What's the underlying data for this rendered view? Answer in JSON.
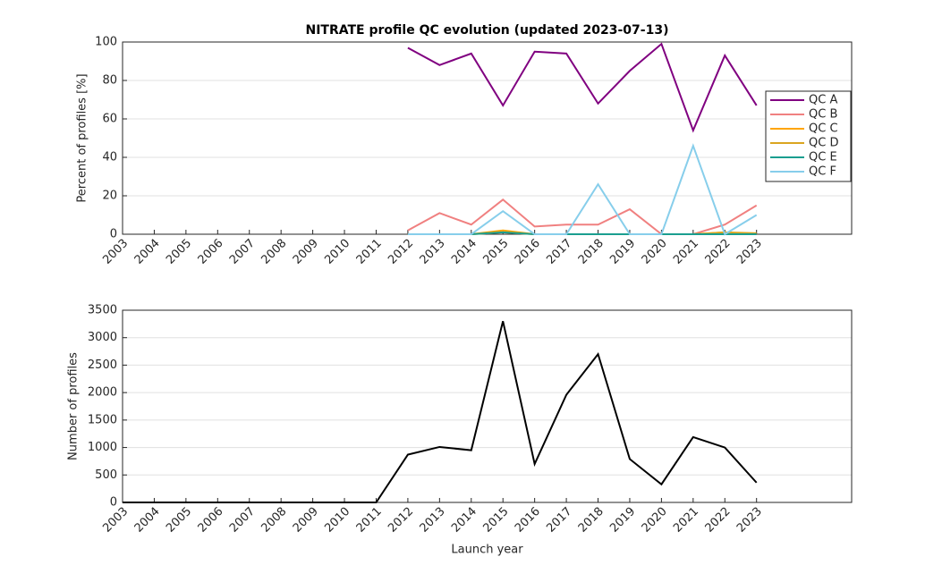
{
  "chart_data": [
    {
      "type": "line",
      "title": "NITRATE profile QC evolution (updated 2023-07-13)",
      "y_label": "Percent of profiles [%]",
      "x": [
        2003,
        2004,
        2005,
        2006,
        2007,
        2008,
        2009,
        2010,
        2011,
        2012,
        2013,
        2014,
        2015,
        2016,
        2017,
        2018,
        2019,
        2020,
        2021,
        2022,
        2023
      ],
      "xlim": [
        2003,
        2026
      ],
      "xticks": [
        2003,
        2004,
        2005,
        2006,
        2007,
        2008,
        2009,
        2010,
        2011,
        2012,
        2013,
        2014,
        2015,
        2016,
        2017,
        2018,
        2019,
        2020,
        2021,
        2022,
        2023
      ],
      "ylim": [
        0,
        100
      ],
      "yticks": [
        0,
        20,
        40,
        60,
        80,
        100
      ],
      "grid": true,
      "legend": "east",
      "series": [
        {
          "name": "QC A",
          "color": "#800080",
          "values": [
            null,
            null,
            null,
            null,
            null,
            null,
            null,
            null,
            null,
            97,
            88,
            94,
            67,
            95,
            94,
            68,
            85,
            99,
            54,
            93,
            67
          ]
        },
        {
          "name": "QC B",
          "color": "#f08080",
          "values": [
            null,
            null,
            null,
            null,
            null,
            null,
            null,
            null,
            null,
            2,
            11,
            5,
            18,
            4,
            5,
            5,
            13,
            0,
            0,
            5,
            15
          ]
        },
        {
          "name": "QC C",
          "color": "#ffa500",
          "values": [
            null,
            null,
            null,
            null,
            null,
            null,
            null,
            null,
            null,
            0,
            0,
            0,
            2,
            0,
            0,
            0,
            0,
            0,
            0,
            1,
            0
          ]
        },
        {
          "name": "QC D",
          "color": "#daa520",
          "values": [
            null,
            null,
            null,
            null,
            null,
            null,
            null,
            null,
            null,
            0,
            0,
            0,
            1,
            0,
            0,
            0,
            0,
            0,
            0,
            1,
            0.5
          ]
        },
        {
          "name": "QC E",
          "color": "#1a9e8f",
          "values": [
            null,
            null,
            null,
            null,
            null,
            null,
            null,
            null,
            null,
            0,
            0,
            0,
            1,
            0,
            0,
            0,
            0,
            0,
            0,
            0,
            0
          ]
        },
        {
          "name": "QC F",
          "color": "#87ceeb",
          "values": [
            null,
            null,
            null,
            null,
            null,
            null,
            null,
            null,
            null,
            0,
            0,
            0,
            12,
            0,
            0,
            26,
            0,
            0,
            46,
            0,
            10
          ]
        }
      ]
    },
    {
      "type": "line",
      "x_label": "Launch year",
      "y_label": "Number of profiles",
      "x": [
        2003,
        2004,
        2005,
        2006,
        2007,
        2008,
        2009,
        2010,
        2011,
        2012,
        2013,
        2014,
        2015,
        2016,
        2017,
        2018,
        2019,
        2020,
        2021,
        2022,
        2023
      ],
      "xlim": [
        2003,
        2026
      ],
      "xticks": [
        2003,
        2004,
        2005,
        2006,
        2007,
        2008,
        2009,
        2010,
        2011,
        2012,
        2013,
        2014,
        2015,
        2016,
        2017,
        2018,
        2019,
        2020,
        2021,
        2022,
        2023
      ],
      "ylim": [
        0,
        3500
      ],
      "yticks": [
        0,
        500,
        1000,
        1500,
        2000,
        2500,
        3000,
        3500
      ],
      "grid": true,
      "color": "#000000",
      "values": [
        0,
        0,
        0,
        0,
        0,
        0,
        0,
        0,
        0,
        870,
        1010,
        950,
        3300,
        700,
        1960,
        2700,
        790,
        330,
        1190,
        1000,
        360
      ]
    }
  ]
}
